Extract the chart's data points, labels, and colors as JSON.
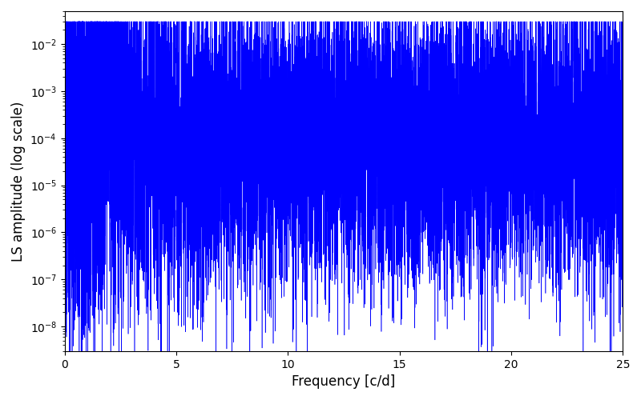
{
  "title": "",
  "xlabel": "Frequency [c/d]",
  "ylabel": "LS amplitude (log scale)",
  "xlim": [
    0,
    25
  ],
  "ylim": [
    3e-09,
    0.05
  ],
  "line_color": "#0000FF",
  "line_width": 0.4,
  "n_frequencies": 12000,
  "freq_max": 25.0,
  "seed": 137,
  "background_color": "#FFFFFF",
  "figsize": [
    8.0,
    5.0
  ],
  "dpi": 100
}
